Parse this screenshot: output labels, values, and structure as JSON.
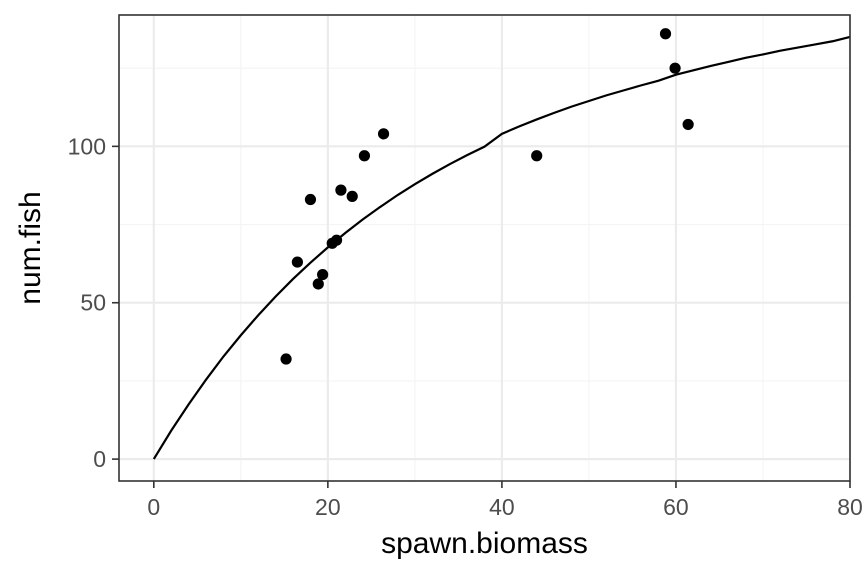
{
  "chart_data": {
    "type": "scatter",
    "xlabel": "spawn.biomass",
    "ylabel": "num.fish",
    "xlim": [
      -4,
      80
    ],
    "ylim": [
      -7,
      142
    ],
    "x_ticks": [
      0,
      20,
      40,
      60,
      80
    ],
    "x_tick_labels": [
      "0",
      "20",
      "40",
      "60",
      "80"
    ],
    "y_ticks": [
      0,
      50,
      100
    ],
    "y_tick_labels": [
      "0",
      "50",
      "100"
    ],
    "grid": true,
    "theme": "bw",
    "points": [
      {
        "x": 15.2,
        "y": 32
      },
      {
        "x": 16.5,
        "y": 63
      },
      {
        "x": 18.0,
        "y": 83
      },
      {
        "x": 18.9,
        "y": 56
      },
      {
        "x": 19.4,
        "y": 59
      },
      {
        "x": 20.5,
        "y": 69
      },
      {
        "x": 21.0,
        "y": 70
      },
      {
        "x": 21.5,
        "y": 86
      },
      {
        "x": 22.8,
        "y": 84
      },
      {
        "x": 24.2,
        "y": 97
      },
      {
        "x": 26.4,
        "y": 104
      },
      {
        "x": 44.0,
        "y": 97
      },
      {
        "x": 58.8,
        "y": 136
      },
      {
        "x": 59.9,
        "y": 125
      },
      {
        "x": 61.4,
        "y": 107
      }
    ],
    "fit_curve": {
      "x": [
        0,
        2,
        4,
        6,
        8,
        10,
        12,
        14,
        16,
        18,
        20,
        22,
        24,
        26,
        28,
        30,
        32,
        34,
        36,
        38,
        40,
        42,
        44,
        46,
        48,
        50,
        52,
        54,
        56,
        58,
        60,
        62,
        64,
        66,
        68,
        70,
        72,
        74,
        76,
        78,
        80
      ],
      "y": [
        0,
        9.1,
        17.5,
        25.4,
        32.8,
        39.6,
        46.0,
        52.0,
        57.6,
        62.8,
        67.7,
        72.3,
        76.6,
        80.6,
        84.4,
        87.9,
        91.2,
        94.3,
        97.2,
        99.9,
        104.0,
        106.4,
        108.6,
        110.7,
        112.7,
        114.5,
        116.3,
        117.9,
        119.5,
        121.0,
        122.9,
        124.3,
        125.7,
        127.0,
        128.3,
        129.4,
        130.6,
        131.6,
        132.6,
        133.6,
        135.0
      ]
    },
    "colors": {
      "points": "#000000",
      "line": "#000000",
      "grid_major": "#ebebeb",
      "grid_minor": "#f4f4f4",
      "panel_border": "#333333",
      "tick": "#333333"
    }
  }
}
